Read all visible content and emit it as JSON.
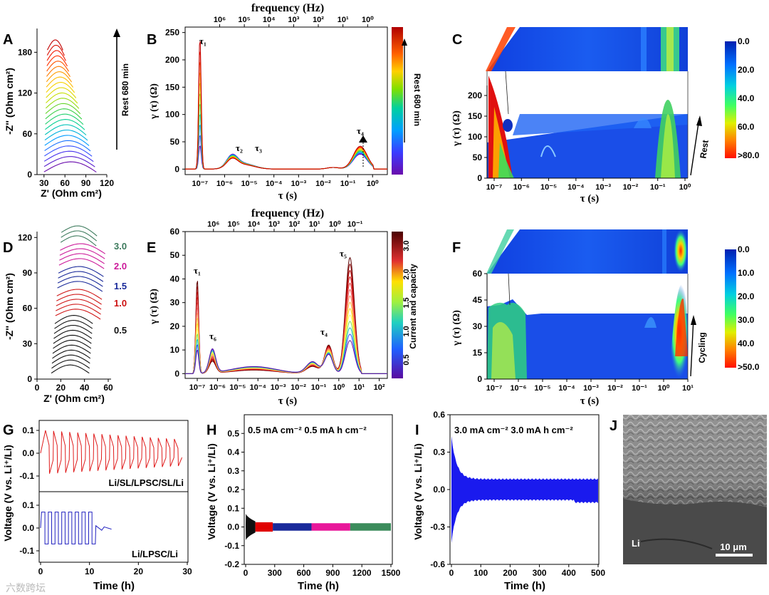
{
  "colors": {
    "rainbow": [
      "#6a0dad",
      "#3b3bff",
      "#00a0ff",
      "#00d0a0",
      "#40d040",
      "#c0e000",
      "#ffd000",
      "#ff8000",
      "#ff2000",
      "#c00000"
    ],
    "redscale": [
      "#5b0000",
      "#8b0000",
      "#b00000",
      "#d01818",
      "#e04040",
      "#f06060",
      "#ff9060",
      "#ffc040",
      "#ffe020",
      "#ffff60"
    ],
    "jet": [
      "#0000b0",
      "#0040ff",
      "#00a0ff",
      "#00e0e0",
      "#40ff80",
      "#c0ff40",
      "#ffe000",
      "#ff8000",
      "#ff2000"
    ],
    "g_top": "#e01c1c",
    "g_bottom": "#2020c0",
    "h_segments": [
      "#101010",
      "#e00000",
      "#1a2a9a",
      "#e8189a",
      "#3c8c5c"
    ],
    "i_signal": "#1a1aee"
  },
  "panels": {
    "A": {
      "letter": "A",
      "xlabel": "Z' (Ohm cm²)",
      "ylabel": "-Z'' (Ohm cm²)",
      "xticks": [
        "30",
        "60",
        "90",
        "120"
      ],
      "yticks": [
        "0",
        "60",
        "120",
        "180"
      ],
      "side_label": "Rest 680 min"
    },
    "B": {
      "letter": "B",
      "xlabel": "τ (s)",
      "ylabel": "γ (τ) (Ω)",
      "top_label": "frequency (Hz)",
      "top_ticks": [
        "10⁶",
        "10⁵",
        "10⁴",
        "10³",
        "10²",
        "10¹",
        "10⁰"
      ],
      "xticks": [
        "10⁻⁷",
        "10⁻⁶",
        "10⁻⁵",
        "10⁻⁴",
        "10⁻³",
        "10⁻²",
        "10⁻¹",
        "10⁰"
      ],
      "yticks": [
        "0",
        "50",
        "100",
        "150",
        "200",
        "250"
      ],
      "peaks": [
        "τ₁",
        "τ₂",
        "τ₃",
        "τ₄"
      ],
      "colorbar_label": "Rest 680 min"
    },
    "C": {
      "letter": "C",
      "xlabel": "τ (s)",
      "ylabel": "γ (τ) (Ω)",
      "xticks": [
        "10⁻⁷",
        "10⁻⁶",
        "10⁻⁵",
        "10⁻⁴",
        "10⁻³",
        "10⁻²",
        "10⁻¹",
        "10⁰"
      ],
      "yticks": [
        "0",
        "50",
        "100",
        "150",
        "200"
      ],
      "side_label": "Rest",
      "colorbar_ticks": [
        "0.0",
        "20.0",
        "40.0",
        "60.0",
        ">80.0"
      ]
    },
    "D": {
      "letter": "D",
      "xlabel": "Z' (Ohm cm²)",
      "ylabel": "-Z'' (Ohm cm²)",
      "xticks": [
        "0",
        "20",
        "40",
        "60"
      ],
      "yticks": [
        "0",
        "30",
        "60",
        "90",
        "120"
      ],
      "group_labels": [
        "3.0",
        "2.0",
        "1.5",
        "1.0",
        "0.5"
      ]
    },
    "E": {
      "letter": "E",
      "xlabel": "τ (s)",
      "ylabel": "γ (τ) (Ω)",
      "top_label": "frequency (Hz)",
      "top_ticks": [
        "10⁶",
        "10⁵",
        "10⁴",
        "10³",
        "10²",
        "10¹",
        "10⁰",
        "10⁻¹"
      ],
      "xticks": [
        "10⁻⁷",
        "10⁻⁶",
        "10⁻⁵",
        "10⁻⁴",
        "10⁻³",
        "10⁻²",
        "10⁻¹",
        "10⁰",
        "10¹",
        "10²"
      ],
      "yticks": [
        "0",
        "10",
        "20",
        "30",
        "40",
        "50",
        "60"
      ],
      "peaks": [
        "τ₁",
        "τ₆",
        "τ₄",
        "τ₅"
      ],
      "colorbar_ticks": [
        "0.5",
        "1.0",
        "1.5",
        "2.0",
        "3.0"
      ],
      "colorbar_label": "Current and capacity"
    },
    "F": {
      "letter": "F",
      "xlabel": "τ (s)",
      "ylabel": "γ (τ) (Ω)",
      "xticks": [
        "10⁻⁷",
        "10⁻⁶",
        "10⁻⁵",
        "10⁻⁴",
        "10⁻³",
        "10⁻²",
        "10⁻¹",
        "10⁰",
        "10¹"
      ],
      "yticks": [
        "0",
        "15",
        "30",
        "45",
        "60"
      ],
      "side_label": "Cycling",
      "colorbar_ticks": [
        "0.0",
        "10.0",
        "20.0",
        "30.0",
        "40.0",
        ">50.0"
      ]
    },
    "G": {
      "letter": "G",
      "xlabel": "Time (h)",
      "ylabel": "Voltage (V vs. Li⁺/Li)",
      "xticks": [
        "0",
        "10",
        "20",
        "30"
      ],
      "yticks": [
        "0.1",
        "0.0",
        "-0.1"
      ],
      "top_label": "Li/SL/LPSC/SL/Li",
      "bottom_label": "Li/LPSC/Li"
    },
    "H": {
      "letter": "H",
      "xlabel": "Time (h)",
      "ylabel": "Voltage (V vs. Li⁺/Li)",
      "xticks": [
        "0",
        "300",
        "600",
        "900",
        "1200",
        "1500"
      ],
      "yticks": [
        "-0.2",
        "-0.1",
        "0.0",
        "0.1",
        "0.2",
        "0.3",
        "0.4",
        "0.5"
      ],
      "condition": "0.5 mA cm⁻²  0.5  mA h cm⁻²"
    },
    "I": {
      "letter": "I",
      "xlabel": "Time (h)",
      "ylabel": "Voltage (V vs. Li⁺/Li)",
      "xticks": [
        "0",
        "100",
        "200",
        "300",
        "400",
        "500"
      ],
      "yticks": [
        "-0.6",
        "-0.3",
        "0.0",
        "0.3",
        "0.6"
      ],
      "condition": "3.0 mA cm⁻²  3.0  mA h cm⁻²"
    },
    "J": {
      "letter": "J",
      "li_label": "Li",
      "scale_bar": "10 μm"
    }
  },
  "watermark": "六数跨坛",
  "chart_data": [
    {
      "panel": "A",
      "type": "line",
      "title": "",
      "xlabel": "Z' (Ohm cm²)",
      "ylabel": "-Z'' (Ohm cm²)",
      "xlim": [
        20,
        120
      ],
      "ylim": [
        0,
        215
      ],
      "n_curves": 24,
      "description_of_series": "stacked Nyquist plots, offset vertically, over 680 min rest"
    },
    {
      "panel": "B",
      "type": "line",
      "xlabel": "τ (s)",
      "ylabel": "γ (τ) (Ω)",
      "xlim_log10": [
        -7.6,
        0.6
      ],
      "ylim": [
        -10,
        260
      ],
      "peaks_log10_tau": [
        -7.0,
        -5.7,
        -5.25,
        -0.5
      ],
      "peak_heights_first_curve": [
        245,
        15,
        8,
        42
      ],
      "n_curves": 11
    },
    {
      "panel": "C",
      "type": "heatmap",
      "xlabel": "τ (s)",
      "ylabel": "γ (τ) (Ω)",
      "zlim": [
        0,
        80
      ],
      "ylim": [
        0,
        220
      ]
    },
    {
      "panel": "D",
      "type": "line",
      "xlabel": "Z' (Ohm cm²)",
      "ylabel": "-Z'' (Ohm cm²)",
      "xlim": [
        0,
        60
      ],
      "ylim": [
        0,
        125
      ],
      "groups": [
        {
          "name": "0.5",
          "curves": 11
        },
        {
          "name": "1.0",
          "curves": 5
        },
        {
          "name": "1.5",
          "curves": 4
        },
        {
          "name": "2.0",
          "curves": 4
        },
        {
          "name": "3.0",
          "curves": 3
        }
      ]
    },
    {
      "panel": "E",
      "type": "line",
      "xlabel": "τ (s)",
      "ylabel": "γ (τ) (Ω)",
      "xlim_log10": [
        -7.6,
        2.4
      ],
      "ylim": [
        -2,
        60
      ],
      "peaks_log10_tau": [
        -7.0,
        -6.25,
        -0.5,
        0.55
      ],
      "peak_heights_range": [
        [
          10,
          40
        ],
        [
          5,
          10
        ],
        [
          8,
          12
        ],
        [
          14,
          49
        ]
      ],
      "n_curves": 14
    },
    {
      "panel": "F",
      "type": "heatmap",
      "xlabel": "τ (s)",
      "ylabel": "γ (τ) (Ω)",
      "zlim": [
        0,
        50
      ],
      "ylim": [
        0,
        60
      ]
    },
    {
      "panel": "G",
      "type": "line",
      "xlabel": "Time (h)",
      "ylabel": "Voltage (V vs. Li⁺/Li)",
      "series": [
        {
          "name": "Li/SL/LPSC/SL/Li",
          "time_range": [
            0,
            30
          ],
          "amplitude_V": [
            0.1,
            0.06
          ],
          "cycles": 17
        },
        {
          "name": "Li/LPSC/Li",
          "time_range": [
            0,
            14.5
          ],
          "amplitude_V": [
            0.07,
            0.07
          ],
          "cycles": 8,
          "short_circuit_at_h": 11
        }
      ]
    },
    {
      "panel": "H",
      "type": "area",
      "xlabel": "Time (h)",
      "ylabel": "Voltage (V vs. Li⁺/Li)",
      "xlim": [
        0,
        1500
      ],
      "ylim": [
        -0.2,
        0.6
      ],
      "segments": [
        {
          "t": [
            0,
            100
          ],
          "v": 0.03
        },
        {
          "t": [
            100,
            280
          ],
          "v": 0.025
        },
        {
          "t": [
            280,
            680
          ],
          "v": 0.02
        },
        {
          "t": [
            680,
            1080
          ],
          "v": 0.02
        },
        {
          "t": [
            1080,
            1500
          ],
          "v": 0.02
        }
      ]
    },
    {
      "panel": "I",
      "type": "area",
      "xlabel": "Time (h)",
      "ylabel": "Voltage (V vs. Li⁺/Li)",
      "xlim": [
        0,
        500
      ],
      "ylim": [
        -0.6,
        0.6
      ],
      "initial_amplitude_V": 0.42,
      "steady_amplitude_V": 0.08
    }
  ]
}
